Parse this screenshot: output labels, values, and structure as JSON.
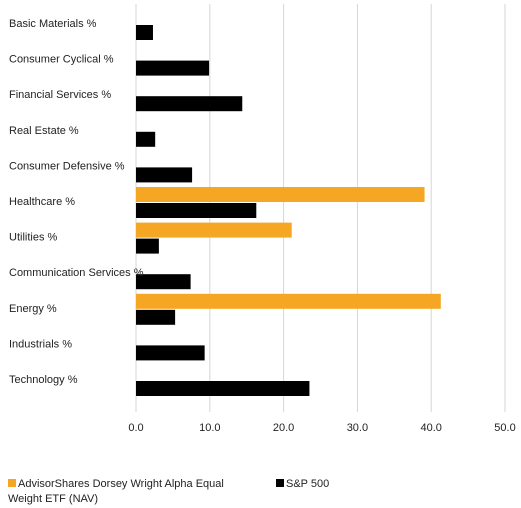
{
  "chart_data": {
    "type": "bar",
    "orientation": "horizontal",
    "categories": [
      "Basic Materials %",
      "Consumer Cyclical %",
      "Financial Services %",
      "Real Estate %",
      "Consumer Defensive %",
      "Healthcare %",
      "Utilities %",
      "Communication Services %",
      "Energy %",
      "Industrials %",
      "Technology %"
    ],
    "series": [
      {
        "name": "AdvisorShares Dorsey Wright Alpha Equal Weight ETF (NAV)",
        "color": "#f5a623",
        "values": [
          0,
          0,
          0,
          0,
          0,
          39.1,
          21.1,
          0,
          41.3,
          0,
          0
        ]
      },
      {
        "name": "S&P 500",
        "color": "#000000",
        "values": [
          2.3,
          9.9,
          14.4,
          2.6,
          7.6,
          16.3,
          3.1,
          7.4,
          5.3,
          9.3,
          23.5
        ]
      }
    ],
    "xlim": [
      0,
      50
    ],
    "xticks": [
      "0.0",
      "10.0",
      "20.0",
      "30.0",
      "40.0",
      "50.0"
    ],
    "grid": true,
    "legend_position": "bottom"
  }
}
